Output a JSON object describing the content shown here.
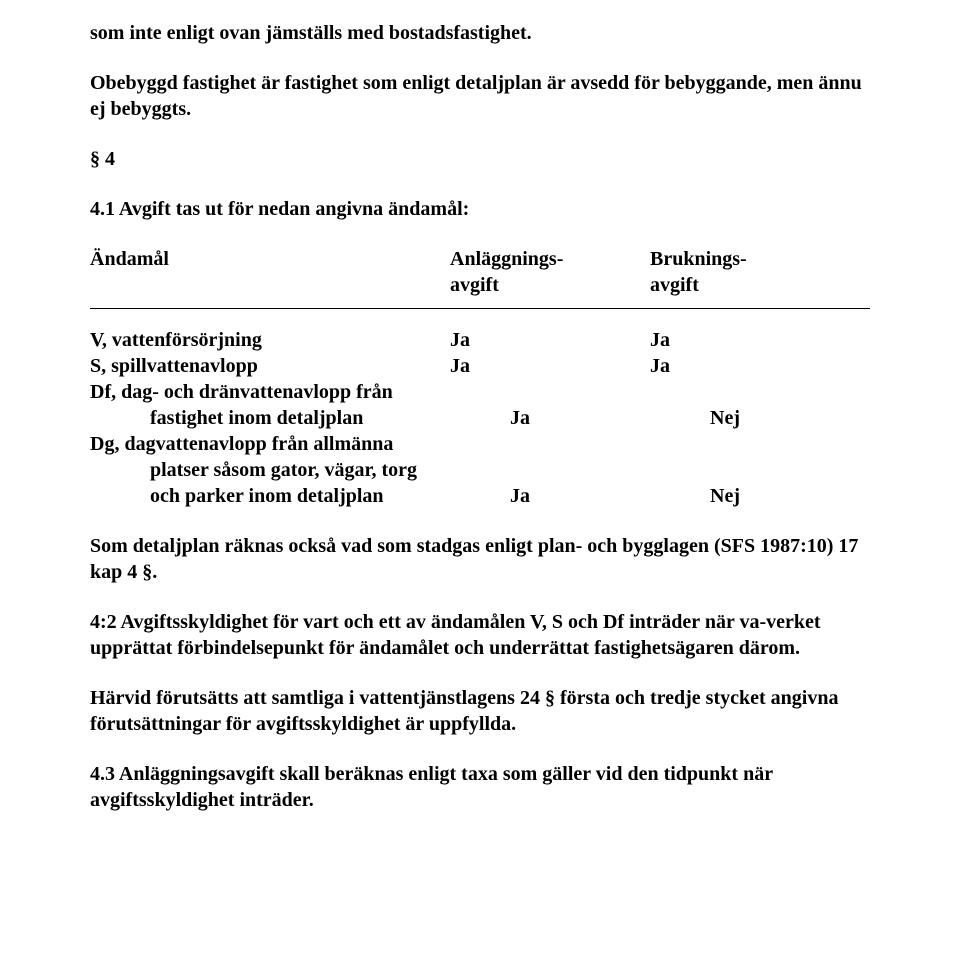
{
  "p1": "som inte enligt ovan jämställs med bostadsfastighet.",
  "p2": "Obebyggd fastighet är fastighet som enligt detaljplan är avsedd för bebyggande, men ännu ej bebyggts.",
  "section4": "§ 4",
  "p3": "4.1 Avgift tas ut för nedan angivna ändamål:",
  "tbl": {
    "hdr": {
      "c1": "Ändamål",
      "c2": "Anläggnings-",
      "c2b": "avgift",
      "c3": "Bruknings-",
      "c3b": "avgift"
    },
    "r1": {
      "c1": "V, vattenförsörjning",
      "c2": "Ja",
      "c3": "Ja"
    },
    "r2": {
      "c1": "S, spillvattenavlopp",
      "c2": "Ja",
      "c3": "Ja"
    },
    "r3a": "Df, dag- och dränvattenavlopp från",
    "r3b": {
      "c1": "fastighet inom detaljplan",
      "c2": "Ja",
      "c3": "Nej"
    },
    "r4a": "Dg, dagvattenavlopp från allmänna",
    "r4b": "platser såsom gator, vägar, torg",
    "r4c": {
      "c1": "och parker inom detaljplan",
      "c2": "Ja",
      "c3": "Nej"
    }
  },
  "p4": "Som detaljplan räknas också vad som stadgas enligt plan- och bygglagen (SFS 1987:10) 17 kap 4 §.",
  "p5": "4:2 Avgiftsskyldighet för vart och ett av ändamålen V, S och Df inträder när va-verket upprättat förbindelsepunkt för ändamålet och underrättat fastighetsägaren därom.",
  "p6": "Härvid förutsätts att samtliga i vattentjänstlagens 24 § första och tredje stycket angivna förutsättningar för avgiftsskyldighet är uppfyllda.",
  "p7": "4.3  Anläggningsavgift skall beräknas enligt taxa som gäller vid den tidpunkt när avgiftsskyldighet inträder."
}
